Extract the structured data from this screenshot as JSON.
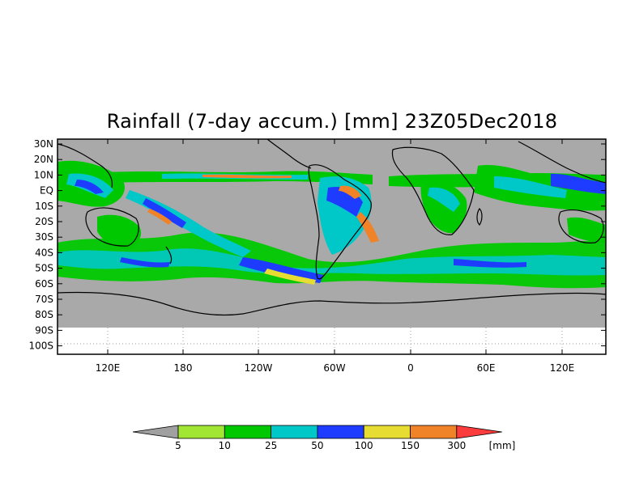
{
  "title": "Rainfall (7-day accum.) [mm] 23Z05Dec2018",
  "map": {
    "lat_labels": [
      "30N",
      "20N",
      "10N",
      "EQ",
      "10S",
      "20S",
      "30S",
      "40S",
      "50S",
      "60S",
      "70S",
      "80S",
      "90S",
      "100S"
    ],
    "lon_labels": [
      "120E",
      "180",
      "120W",
      "60W",
      "0",
      "60E",
      "120E"
    ],
    "ocean_color": "#a9a9a9",
    "nodata_color": "#ffffff"
  },
  "legend": {
    "thresholds": [
      "5",
      "10",
      "25",
      "50",
      "100",
      "150",
      "300"
    ],
    "unit": "[mm]",
    "colors": [
      "#a0a0a0",
      "#a0e632",
      "#00c800",
      "#00c8c8",
      "#1e3cff",
      "#e6dc32",
      "#f08228",
      "#fa3c3c"
    ]
  }
}
